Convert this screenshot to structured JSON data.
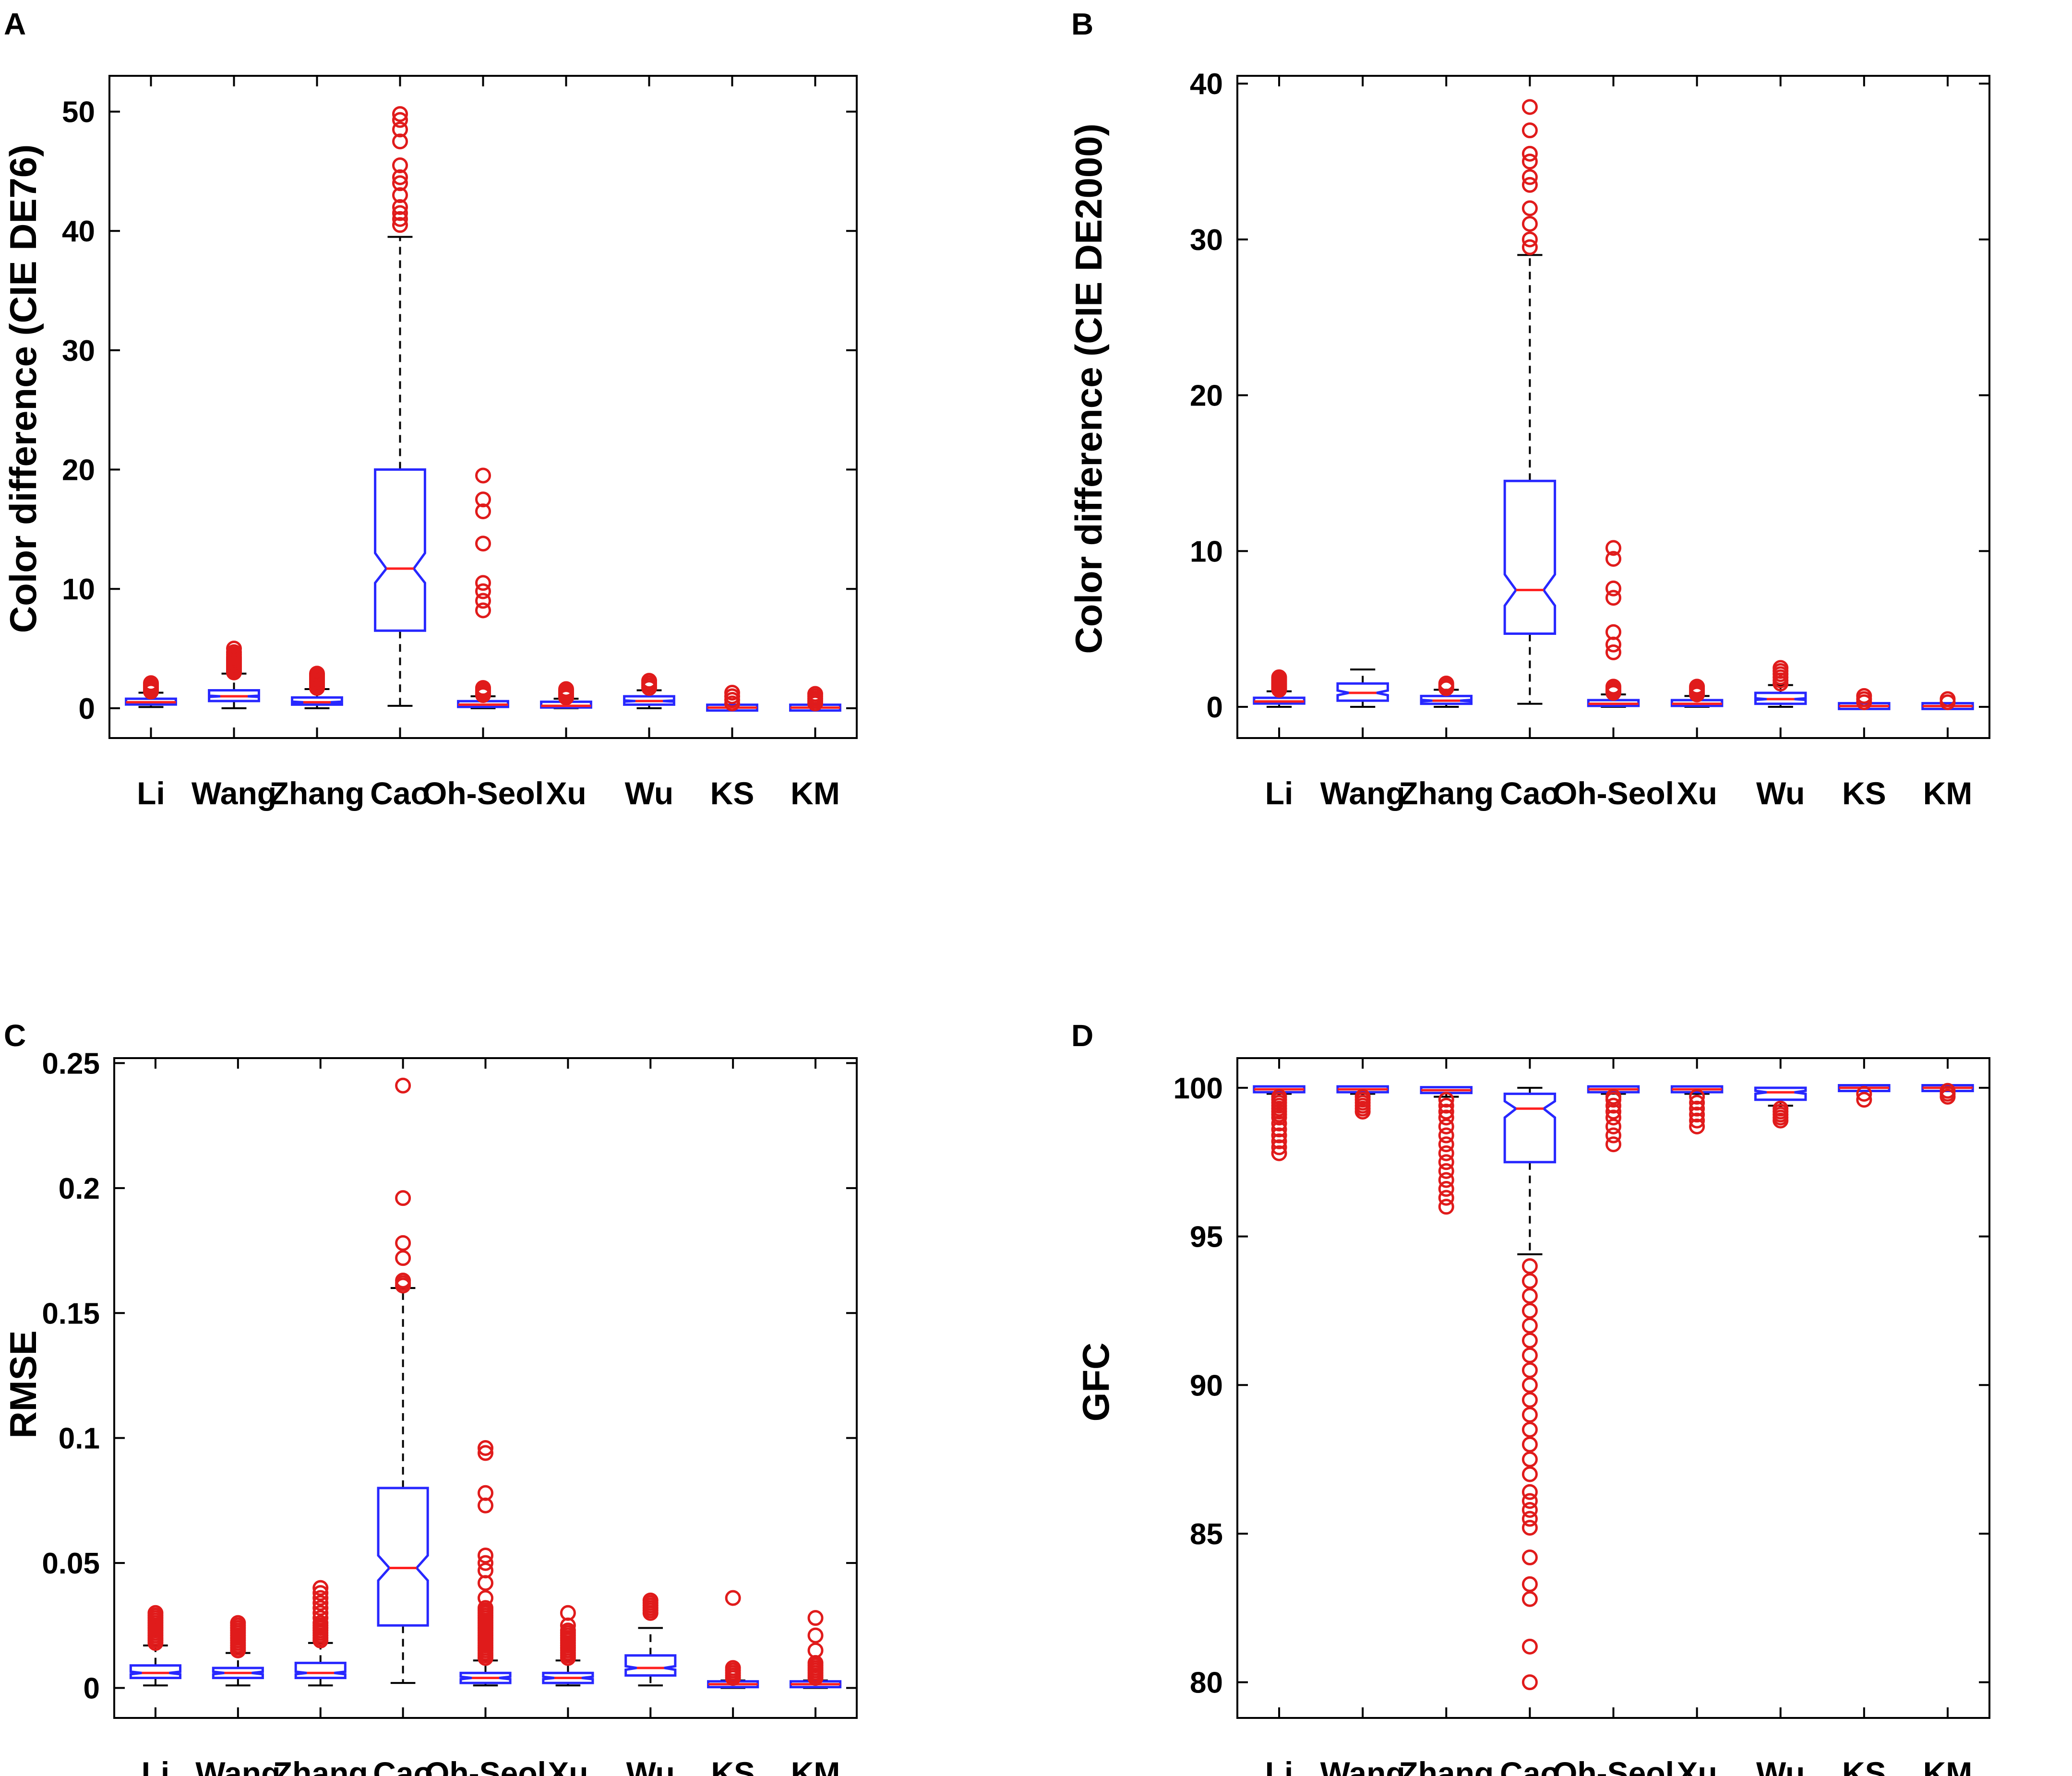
{
  "chart_data": [
    {
      "id": "A",
      "panel_label": "A",
      "type": "boxplot",
      "ylabel": "Color difference (CIE DE76)",
      "ylim": [
        -2.5,
        53
      ],
      "yticks": [
        0,
        10,
        20,
        30,
        40,
        50
      ],
      "categories": [
        "Li",
        "Wang",
        "Zhang",
        "Cao",
        "Oh-Seol",
        "Xu",
        "Wu",
        "KS",
        "KM"
      ],
      "boxes": [
        {
          "q1": 0.3,
          "median": 0.5,
          "q3": 0.8,
          "notch_lo": 0.45,
          "notch_hi": 0.55,
          "whisker_lo": 0.1,
          "whisker_hi": 1.3,
          "outliers": [
            1.4,
            1.5,
            1.6,
            1.7,
            1.8,
            1.9,
            2.0,
            2.1
          ]
        },
        {
          "q1": 0.6,
          "median": 1.0,
          "q3": 1.5,
          "notch_lo": 0.95,
          "notch_hi": 1.05,
          "whisker_lo": 0.0,
          "whisker_hi": 2.9,
          "outliers": [
            3.0,
            3.1,
            3.2,
            3.3,
            3.4,
            3.5,
            3.6,
            3.7,
            3.8,
            3.9,
            4.0,
            4.1,
            4.2,
            4.3,
            4.5,
            4.7,
            5.0
          ]
        },
        {
          "q1": 0.3,
          "median": 0.5,
          "q3": 0.9,
          "notch_lo": 0.45,
          "notch_hi": 0.55,
          "whisker_lo": 0.0,
          "whisker_hi": 1.6,
          "outliers": [
            1.7,
            1.8,
            1.9,
            2.0,
            2.1,
            2.2,
            2.3,
            2.4,
            2.5,
            2.6,
            2.7,
            2.8,
            2.9
          ]
        },
        {
          "q1": 6.5,
          "median": 11.7,
          "q3": 20.0,
          "notch_lo": 10.5,
          "notch_hi": 13.0,
          "whisker_lo": 0.2,
          "whisker_hi": 39.5,
          "outliers": [
            40.5,
            41.0,
            41.5,
            42.0,
            43.0,
            44.0,
            44.5,
            45.5,
            47.5,
            48.5,
            49.3,
            49.8
          ]
        },
        {
          "q1": 0.1,
          "median": 0.3,
          "q3": 0.6,
          "notch_lo": 0.25,
          "notch_hi": 0.35,
          "whisker_lo": 0.0,
          "whisker_hi": 1.0,
          "outliers": [
            1.1,
            1.2,
            1.3,
            1.4,
            1.5,
            1.6,
            1.7,
            8.2,
            9.0,
            9.8,
            10.5,
            13.8,
            16.5,
            17.5,
            19.5
          ]
        },
        {
          "q1": 0.1,
          "median": 0.2,
          "q3": 0.5,
          "notch_lo": 0.18,
          "notch_hi": 0.22,
          "whisker_lo": 0.0,
          "whisker_hi": 0.8,
          "outliers": [
            0.9,
            1.0,
            1.1,
            1.2,
            1.3,
            1.4,
            1.5,
            1.6
          ]
        },
        {
          "q1": 0.3,
          "median": 0.6,
          "q3": 1.0,
          "notch_lo": 0.55,
          "notch_hi": 0.65,
          "whisker_lo": 0.0,
          "whisker_hi": 1.5,
          "outliers": [
            1.7,
            1.9,
            2.1,
            2.3
          ]
        },
        {
          "q1": 0.0,
          "median": 0.05,
          "q3": 0.1,
          "notch_lo": 0.04,
          "notch_hi": 0.06,
          "whisker_lo": 0.0,
          "whisker_hi": 0.2,
          "outliers": [
            0.4,
            0.7,
            1.0,
            1.3
          ]
        },
        {
          "q1": 0.0,
          "median": 0.05,
          "q3": 0.1,
          "notch_lo": 0.04,
          "notch_hi": 0.06,
          "whisker_lo": 0.0,
          "whisker_hi": 0.2,
          "outliers": [
            0.4,
            0.6,
            0.8,
            1.0,
            1.2
          ]
        }
      ]
    },
    {
      "id": "B",
      "panel_label": "B",
      "type": "boxplot",
      "ylabel": "Color difference (CIE DE2000)",
      "ylim": [
        -2,
        40.5
      ],
      "yticks": [
        0,
        10,
        20,
        30,
        40
      ],
      "categories": [
        "Li",
        "Wang",
        "Zhang",
        "Cao",
        "Oh-Seol",
        "Xu",
        "Wu",
        "KS",
        "KM"
      ],
      "boxes": [
        {
          "q1": 0.2,
          "median": 0.35,
          "q3": 0.6,
          "notch_lo": 0.3,
          "notch_hi": 0.4,
          "whisker_lo": 0.0,
          "whisker_hi": 1.0,
          "outliers": [
            1.1,
            1.2,
            1.3,
            1.4,
            1.5,
            1.6,
            1.7,
            1.8,
            1.9
          ]
        },
        {
          "q1": 0.4,
          "median": 0.9,
          "q3": 1.5,
          "notch_lo": 0.75,
          "notch_hi": 1.05,
          "whisker_lo": 0.0,
          "whisker_hi": 2.4,
          "outliers": []
        },
        {
          "q1": 0.2,
          "median": 0.4,
          "q3": 0.7,
          "notch_lo": 0.35,
          "notch_hi": 0.45,
          "whisker_lo": 0.0,
          "whisker_hi": 1.1,
          "outliers": [
            1.2,
            1.3,
            1.4,
            1.5
          ]
        },
        {
          "q1": 4.7,
          "median": 7.5,
          "q3": 14.5,
          "notch_lo": 6.5,
          "notch_hi": 8.5,
          "whisker_lo": 0.2,
          "whisker_hi": 29.0,
          "outliers": [
            29.5,
            30.0,
            31.0,
            32.0,
            33.5,
            34.0,
            35.0,
            35.5,
            37.0,
            38.5
          ]
        },
        {
          "q1": 0.1,
          "median": 0.2,
          "q3": 0.4,
          "notch_lo": 0.18,
          "notch_hi": 0.22,
          "whisker_lo": 0.0,
          "whisker_hi": 0.8,
          "outliers": [
            0.9,
            1.0,
            1.1,
            1.2,
            1.3,
            3.5,
            4.0,
            4.8,
            7.0,
            7.6,
            9.5,
            10.2
          ]
        },
        {
          "q1": 0.1,
          "median": 0.2,
          "q3": 0.4,
          "notch_lo": 0.18,
          "notch_hi": 0.22,
          "whisker_lo": 0.0,
          "whisker_hi": 0.7,
          "outliers": [
            0.8,
            0.9,
            1.0,
            1.1,
            1.2,
            1.3
          ]
        },
        {
          "q1": 0.2,
          "median": 0.5,
          "q3": 0.9,
          "notch_lo": 0.45,
          "notch_hi": 0.55,
          "whisker_lo": 0.0,
          "whisker_hi": 1.4,
          "outliers": [
            1.5,
            1.7,
            1.9,
            2.1,
            2.3,
            2.5
          ]
        },
        {
          "q1": 0.0,
          "median": 0.05,
          "q3": 0.1,
          "notch_lo": 0.04,
          "notch_hi": 0.06,
          "whisker_lo": 0.0,
          "whisker_hi": 0.15,
          "outliers": [
            0.3,
            0.5,
            0.7
          ]
        },
        {
          "q1": 0.0,
          "median": 0.05,
          "q3": 0.1,
          "notch_lo": 0.04,
          "notch_hi": 0.06,
          "whisker_lo": 0.0,
          "whisker_hi": 0.15,
          "outliers": [
            0.3,
            0.5
          ]
        }
      ]
    },
    {
      "id": "C",
      "panel_label": "C",
      "type": "boxplot",
      "ylabel": "RMSE",
      "ylim": [
        -0.012,
        0.252
      ],
      "yticks": [
        0,
        0.05,
        0.1,
        0.15,
        0.2,
        0.25
      ],
      "ytick_labels": [
        "0",
        "0.05",
        "0.1",
        "0.15",
        "0.2",
        "0.25"
      ],
      "categories": [
        "Li",
        "Wang",
        "Zhang",
        "Cao",
        "Oh-Seol",
        "Xu",
        "Wu",
        "KS",
        "KM"
      ],
      "boxes": [
        {
          "q1": 0.004,
          "median": 0.006,
          "q3": 0.009,
          "notch_lo": 0.0055,
          "notch_hi": 0.0065,
          "whisker_lo": 0.001,
          "whisker_hi": 0.017,
          "outliers": [
            0.018,
            0.019,
            0.02,
            0.021,
            0.022,
            0.023,
            0.024,
            0.025,
            0.026,
            0.027,
            0.028,
            0.029,
            0.03
          ]
        },
        {
          "q1": 0.004,
          "median": 0.006,
          "q3": 0.008,
          "notch_lo": 0.0055,
          "notch_hi": 0.0065,
          "whisker_lo": 0.001,
          "whisker_hi": 0.014,
          "outliers": [
            0.015,
            0.016,
            0.017,
            0.018,
            0.019,
            0.02,
            0.021,
            0.022,
            0.023,
            0.024,
            0.025,
            0.026
          ]
        },
        {
          "q1": 0.004,
          "median": 0.006,
          "q3": 0.01,
          "notch_lo": 0.0055,
          "notch_hi": 0.0065,
          "whisker_lo": 0.001,
          "whisker_hi": 0.018,
          "outliers": [
            0.019,
            0.02,
            0.021,
            0.022,
            0.023,
            0.024,
            0.025,
            0.026,
            0.028,
            0.03,
            0.032,
            0.034,
            0.036,
            0.038,
            0.04
          ]
        },
        {
          "q1": 0.025,
          "median": 0.048,
          "q3": 0.08,
          "notch_lo": 0.043,
          "notch_hi": 0.053,
          "whisker_lo": 0.002,
          "whisker_hi": 0.16,
          "outliers": [
            0.161,
            0.162,
            0.163,
            0.172,
            0.178,
            0.196,
            0.241
          ]
        },
        {
          "q1": 0.002,
          "median": 0.004,
          "q3": 0.006,
          "notch_lo": 0.0035,
          "notch_hi": 0.0045,
          "whisker_lo": 0.001,
          "whisker_hi": 0.011,
          "outliers": [
            0.012,
            0.013,
            0.014,
            0.015,
            0.016,
            0.017,
            0.018,
            0.019,
            0.02,
            0.021,
            0.022,
            0.023,
            0.024,
            0.025,
            0.026,
            0.027,
            0.028,
            0.029,
            0.03,
            0.031,
            0.032,
            0.036,
            0.042,
            0.047,
            0.05,
            0.053,
            0.073,
            0.078,
            0.094,
            0.096
          ]
        },
        {
          "q1": 0.002,
          "median": 0.004,
          "q3": 0.006,
          "notch_lo": 0.0035,
          "notch_hi": 0.0045,
          "whisker_lo": 0.001,
          "whisker_hi": 0.011,
          "outliers": [
            0.012,
            0.013,
            0.014,
            0.015,
            0.016,
            0.017,
            0.018,
            0.019,
            0.02,
            0.021,
            0.022,
            0.023,
            0.025,
            0.03
          ]
        },
        {
          "q1": 0.005,
          "median": 0.008,
          "q3": 0.013,
          "notch_lo": 0.0073,
          "notch_hi": 0.0087,
          "whisker_lo": 0.001,
          "whisker_hi": 0.024,
          "outliers": [
            0.03,
            0.031,
            0.032,
            0.033,
            0.034,
            0.035
          ]
        },
        {
          "q1": 0.001,
          "median": 0.0015,
          "q3": 0.002,
          "notch_lo": 0.0013,
          "notch_hi": 0.0017,
          "whisker_lo": 0.0,
          "whisker_hi": 0.003,
          "outliers": [
            0.004,
            0.005,
            0.006,
            0.007,
            0.008,
            0.036
          ]
        },
        {
          "q1": 0.001,
          "median": 0.0015,
          "q3": 0.002,
          "notch_lo": 0.0013,
          "notch_hi": 0.0017,
          "whisker_lo": 0.0,
          "whisker_hi": 0.003,
          "outliers": [
            0.004,
            0.005,
            0.006,
            0.007,
            0.008,
            0.009,
            0.01,
            0.015,
            0.021,
            0.028
          ]
        }
      ]
    },
    {
      "id": "D",
      "panel_label": "D",
      "type": "boxplot",
      "ylabel": "GFC",
      "ylim": [
        78.8,
        101.0
      ],
      "yticks": [
        80,
        85,
        90,
        95,
        100
      ],
      "categories": [
        "Li",
        "Wang",
        "Zhang",
        "Cao",
        "Oh-Seol",
        "Xu",
        "Wu",
        "KS",
        "KM"
      ],
      "boxes": [
        {
          "q1": 99.9,
          "median": 99.95,
          "q3": 100.0,
          "notch_lo": 99.94,
          "notch_hi": 99.96,
          "whisker_lo": 99.8,
          "whisker_hi": 100.0,
          "outliers": [
            97.8,
            98.0,
            98.2,
            98.4,
            98.6,
            98.8,
            99.0,
            99.1,
            99.2,
            99.3,
            99.4,
            99.5,
            99.6,
            99.7
          ]
        },
        {
          "q1": 99.9,
          "median": 99.95,
          "q3": 100.0,
          "notch_lo": 99.94,
          "notch_hi": 99.96,
          "whisker_lo": 99.8,
          "whisker_hi": 100.0,
          "outliers": [
            99.2,
            99.3,
            99.4,
            99.5,
            99.6,
            99.7
          ]
        },
        {
          "q1": 99.85,
          "median": 99.92,
          "q3": 100.0,
          "notch_lo": 99.9,
          "notch_hi": 99.94,
          "whisker_lo": 99.7,
          "whisker_hi": 100.0,
          "outliers": [
            96.0,
            96.3,
            96.6,
            96.9,
            97.2,
            97.5,
            97.8,
            98.1,
            98.4,
            98.7,
            99.0,
            99.2,
            99.4,
            99.6
          ]
        },
        {
          "q1": 97.5,
          "median": 99.3,
          "q3": 99.8,
          "notch_lo": 99.0,
          "notch_hi": 99.55,
          "whisker_lo": 94.4,
          "whisker_hi": 100.0,
          "outliers": [
            80.0,
            81.2,
            82.8,
            83.3,
            84.2,
            85.2,
            85.5,
            85.8,
            86.1,
            86.4,
            87.0,
            87.5,
            88.0,
            88.5,
            89.0,
            89.5,
            90.0,
            90.5,
            91.0,
            91.5,
            92.0,
            92.5,
            93.0,
            93.5,
            94.0
          ]
        },
        {
          "q1": 99.9,
          "median": 99.95,
          "q3": 100.0,
          "notch_lo": 99.94,
          "notch_hi": 99.96,
          "whisker_lo": 99.8,
          "whisker_hi": 100.0,
          "outliers": [
            98.1,
            98.4,
            98.7,
            99.0,
            99.2,
            99.4,
            99.6,
            99.7
          ]
        },
        {
          "q1": 99.9,
          "median": 99.95,
          "q3": 100.0,
          "notch_lo": 99.94,
          "notch_hi": 99.96,
          "whisker_lo": 99.8,
          "whisker_hi": 100.0,
          "outliers": [
            98.7,
            98.9,
            99.1,
            99.3,
            99.5,
            99.7
          ]
        },
        {
          "q1": 99.6,
          "median": 99.85,
          "q3": 100.0,
          "notch_lo": 99.8,
          "notch_hi": 99.9,
          "whisker_lo": 99.4,
          "whisker_hi": 100.0,
          "outliers": [
            98.9,
            99.0,
            99.1,
            99.2,
            99.3
          ]
        },
        {
          "q1": 99.98,
          "median": 100.0,
          "q3": 100.0,
          "notch_lo": 99.99,
          "notch_hi": 100.0,
          "whisker_lo": 99.95,
          "whisker_hi": 100.0,
          "outliers": [
            99.6,
            99.8
          ]
        },
        {
          "q1": 99.98,
          "median": 100.0,
          "q3": 100.0,
          "notch_lo": 99.99,
          "notch_hi": 100.0,
          "whisker_lo": 99.95,
          "whisker_hi": 100.0,
          "outliers": [
            99.7,
            99.8,
            99.9
          ]
        }
      ]
    }
  ],
  "colors": {
    "box": "#2727ff",
    "median": "#ff2020",
    "outlier": "#e01b1b",
    "whisker": "#000000",
    "axis": "#000000"
  }
}
